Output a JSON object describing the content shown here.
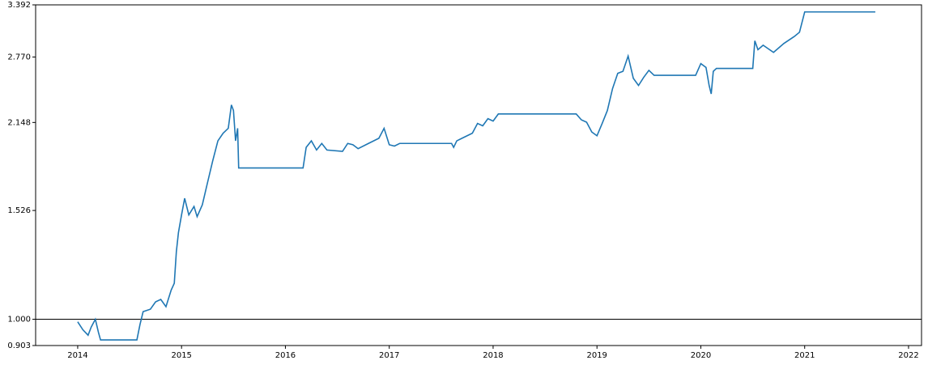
{
  "chart_data": {
    "type": "line",
    "yscale": "log",
    "color": "#1f77b4",
    "x": [
      2014.0,
      2014.05,
      2014.1,
      2014.13,
      2014.17,
      2014.2,
      2014.22,
      2014.57,
      2014.6,
      2014.63,
      2014.7,
      2014.75,
      2014.8,
      2014.85,
      2014.9,
      2014.93,
      2014.95,
      2014.97,
      2015.0,
      2015.03,
      2015.07,
      2015.12,
      2015.15,
      2015.2,
      2015.25,
      2015.3,
      2015.35,
      2015.4,
      2015.45,
      2015.48,
      2015.5,
      2015.52,
      2015.54,
      2015.55,
      2016.17,
      2016.2,
      2016.25,
      2016.3,
      2016.35,
      2016.4,
      2016.55,
      2016.6,
      2016.65,
      2016.7,
      2016.8,
      2016.9,
      2016.95,
      2017.0,
      2017.05,
      2017.1,
      2017.6,
      2017.62,
      2017.65,
      2017.7,
      2017.8,
      2017.85,
      2017.9,
      2017.95,
      2018.0,
      2018.05,
      2018.8,
      2018.85,
      2018.9,
      2018.95,
      2019.0,
      2019.05,
      2019.1,
      2019.15,
      2019.2,
      2019.25,
      2019.3,
      2019.35,
      2019.4,
      2019.45,
      2019.5,
      2019.55,
      2019.95,
      2020.0,
      2020.05,
      2020.08,
      2020.1,
      2020.12,
      2020.15,
      2020.5,
      2020.52,
      2020.55,
      2020.6,
      2020.7,
      2020.8,
      2020.9,
      2020.95,
      2021.0,
      2021.68
    ],
    "values": [
      0.99,
      0.96,
      0.94,
      0.97,
      1.0,
      0.95,
      0.923,
      0.923,
      0.98,
      1.03,
      1.04,
      1.07,
      1.08,
      1.05,
      1.12,
      1.15,
      1.3,
      1.4,
      1.5,
      1.6,
      1.5,
      1.55,
      1.49,
      1.56,
      1.7,
      1.85,
      2.0,
      2.06,
      2.1,
      2.3,
      2.25,
      2.0,
      2.1,
      1.8,
      1.8,
      1.95,
      2.0,
      1.93,
      1.98,
      1.93,
      1.92,
      1.98,
      1.97,
      1.94,
      1.98,
      2.02,
      2.1,
      1.97,
      1.96,
      1.98,
      1.98,
      1.95,
      2.0,
      2.02,
      2.06,
      2.14,
      2.12,
      2.18,
      2.16,
      2.22,
      2.22,
      2.17,
      2.15,
      2.07,
      2.04,
      2.14,
      2.25,
      2.45,
      2.6,
      2.62,
      2.78,
      2.55,
      2.48,
      2.56,
      2.63,
      2.58,
      2.58,
      2.7,
      2.66,
      2.48,
      2.4,
      2.62,
      2.65,
      2.65,
      2.95,
      2.85,
      2.9,
      2.82,
      2.92,
      3.0,
      3.05,
      3.3,
      3.3
    ],
    "reference_line": 1,
    "xlim": [
      2013.595,
      2022.125
    ],
    "xticks": [
      2014,
      2015,
      2016,
      2017,
      2018,
      2019,
      2020,
      2021,
      2022
    ],
    "ylim": [
      0.903,
      3.392
    ],
    "yticks": [
      0.903,
      {
        "value": 1,
        "label": "1.000"
      },
      1.526,
      2.148,
      {
        "value": 2.77,
        "label": "2.770"
      },
      3.392
    ]
  }
}
